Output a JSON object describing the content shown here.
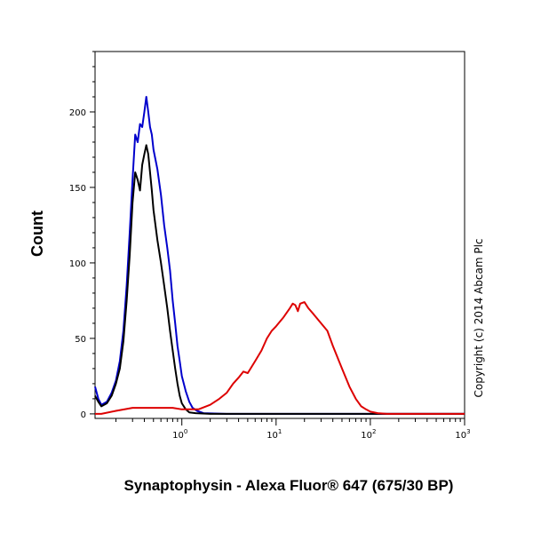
{
  "chart_data": {
    "type": "line",
    "xlabel": "Synaptophysin - Alexa Fluor® 647 (675/30 BP)",
    "ylabel": "Count",
    "x_scale": "log",
    "x_tick_labels": [
      {
        "value": 1,
        "base": "10",
        "exp": "0"
      },
      {
        "value": 10,
        "base": "10",
        "exp": "1"
      },
      {
        "value": 100,
        "base": "10",
        "exp": "2"
      },
      {
        "value": 1000,
        "base": "10",
        "exp": "3"
      }
    ],
    "xlim": [
      0.12,
      1000
    ],
    "y_ticks": [
      0,
      50,
      100,
      150,
      200
    ],
    "ylim": [
      -3,
      240
    ],
    "grid": false,
    "copyright": "Copyright (c) 2014 Abcam Plc",
    "series": [
      {
        "color": "#0000cc",
        "points": [
          [
            0.12,
            18
          ],
          [
            0.13,
            10
          ],
          [
            0.14,
            6
          ],
          [
            0.16,
            8
          ],
          [
            0.18,
            14
          ],
          [
            0.2,
            22
          ],
          [
            0.22,
            35
          ],
          [
            0.24,
            55
          ],
          [
            0.26,
            85
          ],
          [
            0.28,
            120
          ],
          [
            0.3,
            155
          ],
          [
            0.32,
            185
          ],
          [
            0.34,
            180
          ],
          [
            0.36,
            192
          ],
          [
            0.38,
            190
          ],
          [
            0.4,
            200
          ],
          [
            0.42,
            210
          ],
          [
            0.44,
            200
          ],
          [
            0.46,
            190
          ],
          [
            0.48,
            185
          ],
          [
            0.5,
            175
          ],
          [
            0.55,
            162
          ],
          [
            0.6,
            145
          ],
          [
            0.65,
            125
          ],
          [
            0.7,
            110
          ],
          [
            0.75,
            95
          ],
          [
            0.8,
            75
          ],
          [
            0.85,
            60
          ],
          [
            0.9,
            45
          ],
          [
            0.95,
            35
          ],
          [
            1.0,
            25
          ],
          [
            1.1,
            15
          ],
          [
            1.2,
            8
          ],
          [
            1.3,
            4
          ],
          [
            1.45,
            2
          ],
          [
            1.7,
            0.5
          ],
          [
            3,
            0
          ],
          [
            100,
            0
          ],
          [
            1000,
            0
          ]
        ]
      },
      {
        "color": "#000000",
        "points": [
          [
            0.12,
            12
          ],
          [
            0.13,
            8
          ],
          [
            0.14,
            5
          ],
          [
            0.16,
            7
          ],
          [
            0.18,
            12
          ],
          [
            0.2,
            20
          ],
          [
            0.22,
            30
          ],
          [
            0.24,
            48
          ],
          [
            0.26,
            75
          ],
          [
            0.28,
            105
          ],
          [
            0.3,
            140
          ],
          [
            0.32,
            160
          ],
          [
            0.34,
            155
          ],
          [
            0.36,
            148
          ],
          [
            0.38,
            165
          ],
          [
            0.4,
            172
          ],
          [
            0.42,
            178
          ],
          [
            0.44,
            172
          ],
          [
            0.46,
            160
          ],
          [
            0.48,
            148
          ],
          [
            0.5,
            135
          ],
          [
            0.55,
            115
          ],
          [
            0.6,
            100
          ],
          [
            0.65,
            85
          ],
          [
            0.7,
            70
          ],
          [
            0.75,
            55
          ],
          [
            0.8,
            42
          ],
          [
            0.85,
            30
          ],
          [
            0.9,
            20
          ],
          [
            0.95,
            12
          ],
          [
            1.0,
            7
          ],
          [
            1.1,
            3
          ],
          [
            1.2,
            1
          ],
          [
            1.4,
            0.5
          ],
          [
            2,
            0
          ],
          [
            100,
            0
          ],
          [
            1000,
            0
          ]
        ]
      },
      {
        "color": "#dd0000",
        "points": [
          [
            0.12,
            0
          ],
          [
            0.14,
            0
          ],
          [
            0.2,
            2
          ],
          [
            0.3,
            4
          ],
          [
            0.5,
            4
          ],
          [
            0.8,
            4
          ],
          [
            1.0,
            3
          ],
          [
            1.5,
            3
          ],
          [
            2.0,
            6
          ],
          [
            2.5,
            10
          ],
          [
            3.0,
            14
          ],
          [
            3.5,
            20
          ],
          [
            4.0,
            24
          ],
          [
            4.5,
            28
          ],
          [
            5.0,
            27
          ],
          [
            6.0,
            35
          ],
          [
            7.0,
            42
          ],
          [
            8.0,
            50
          ],
          [
            9.0,
            55
          ],
          [
            10,
            58
          ],
          [
            12,
            64
          ],
          [
            14,
            70
          ],
          [
            15,
            73
          ],
          [
            16,
            72
          ],
          [
            17,
            68
          ],
          [
            18,
            73
          ],
          [
            20,
            74
          ],
          [
            22,
            70
          ],
          [
            25,
            66
          ],
          [
            30,
            60
          ],
          [
            35,
            55
          ],
          [
            40,
            45
          ],
          [
            50,
            30
          ],
          [
            60,
            18
          ],
          [
            70,
            10
          ],
          [
            80,
            5
          ],
          [
            90,
            3
          ],
          [
            100,
            1.5
          ],
          [
            120,
            0.5
          ],
          [
            150,
            0
          ],
          [
            300,
            0
          ],
          [
            1000,
            0
          ]
        ]
      }
    ]
  }
}
